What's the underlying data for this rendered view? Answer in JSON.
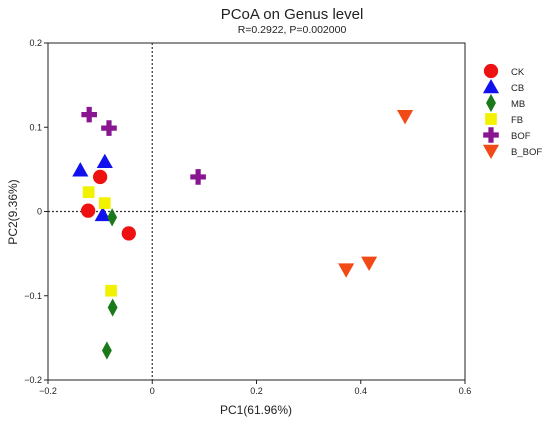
{
  "chart_data": {
    "type": "scatter",
    "title": "PCoA on Genus level",
    "subtitle": "R=0.2922, P=0.002000",
    "xlabel": "PC1(61.96%)",
    "ylabel": "PC2(9.36%)",
    "xlim": [
      -0.2,
      0.6
    ],
    "ylim": [
      -0.2,
      0.2
    ],
    "xticks": [
      -0.2,
      0,
      0.2,
      0.4,
      0.6
    ],
    "yticks": [
      -0.2,
      -0.1,
      0,
      0.1,
      0.2
    ],
    "xtick_labels": [
      "−0.2",
      "0",
      "0.2",
      "0.4",
      "0.6"
    ],
    "ytick_labels": [
      "−0.2",
      "−0.1",
      "0",
      "0.1",
      "0.2"
    ],
    "grid": false,
    "reference_lines": {
      "x": 0,
      "y": 0,
      "style": "dotted"
    },
    "legend_position": "right",
    "series": [
      {
        "name": "CK",
        "marker": "circle",
        "color": "#ee1111",
        "points": [
          [
            -0.1,
            0.041
          ],
          [
            -0.123,
            0.001
          ],
          [
            -0.045,
            -0.026
          ]
        ]
      },
      {
        "name": "CB",
        "marker": "triangle-up",
        "color": "#1111ee",
        "points": [
          [
            -0.138,
            0.049
          ],
          [
            -0.091,
            0.059
          ],
          [
            -0.095,
            -0.004
          ]
        ]
      },
      {
        "name": "MB",
        "marker": "diamond",
        "color": "#1a7a1a",
        "points": [
          [
            -0.077,
            -0.007
          ],
          [
            -0.076,
            -0.114
          ],
          [
            -0.087,
            -0.165
          ]
        ]
      },
      {
        "name": "FB",
        "marker": "square",
        "color": "#f2f200",
        "points": [
          [
            -0.122,
            0.023
          ],
          [
            -0.091,
            0.01
          ],
          [
            -0.079,
            -0.094
          ]
        ]
      },
      {
        "name": "BOF",
        "marker": "plus",
        "color": "#8a1590",
        "points": [
          [
            -0.121,
            0.115
          ],
          [
            -0.083,
            0.099
          ],
          [
            0.088,
            0.041
          ]
        ]
      },
      {
        "name": "B_BOF",
        "marker": "triangle-down",
        "color": "#f24a16",
        "points": [
          [
            0.485,
            0.113
          ],
          [
            0.372,
            -0.069
          ],
          [
            0.416,
            -0.061
          ]
        ]
      }
    ]
  }
}
